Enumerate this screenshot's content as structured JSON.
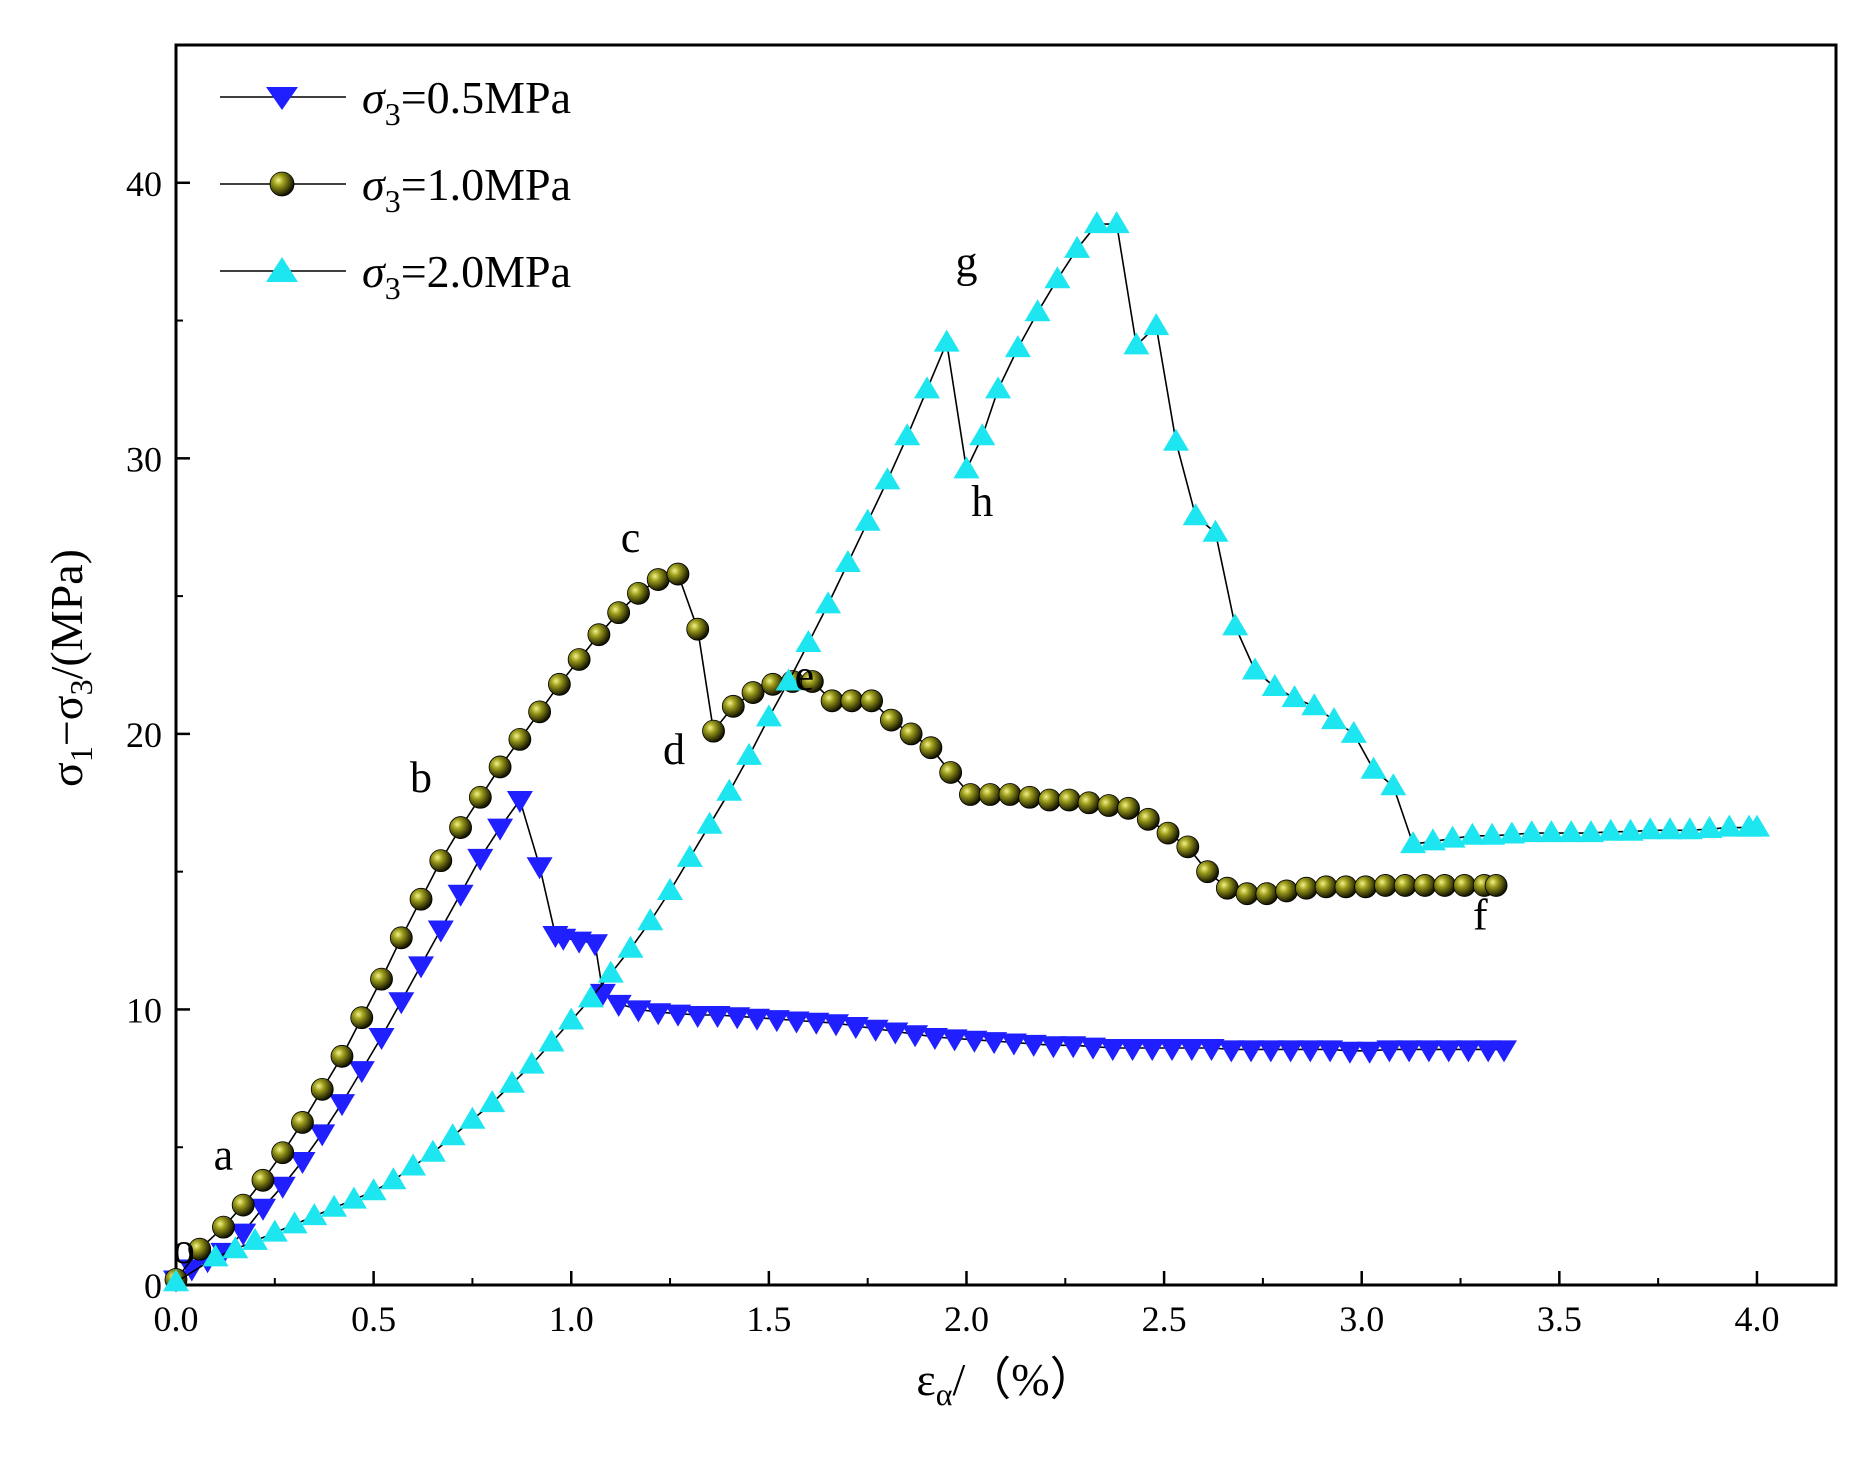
{
  "chart_data": {
    "type": "line",
    "title": "",
    "xlabel": {
      "base": "ε",
      "sub": "α",
      "suffix": "/（%）"
    },
    "ylabel": {
      "p1": "σ",
      "s1": "1",
      "mid": "−σ",
      "s2": "3",
      "suffix": "/(MPa)"
    },
    "xlim": [
      0,
      4.2
    ],
    "ylim": [
      0,
      45
    ],
    "xticks": [
      "0.0",
      "0.5",
      "1.0",
      "1.5",
      "2.0",
      "2.5",
      "3.0",
      "3.5",
      "4.0"
    ],
    "xtick_values": [
      0,
      0.5,
      1.0,
      1.5,
      2.0,
      2.5,
      3.0,
      3.5,
      4.0
    ],
    "yticks": [
      "0",
      "10",
      "20",
      "30",
      "40"
    ],
    "ytick_values": [
      0,
      10,
      20,
      30,
      40
    ],
    "legend_position": "top-left",
    "colors": {
      "s05": "#1f1fff",
      "s10": "#2b2b00",
      "s20": "#1ee6f0",
      "line": "#000000"
    },
    "series": [
      {
        "name": "σ3=0.5MPa",
        "legend": {
          "pre": "σ",
          "sub": "3",
          "post": "=0.5MPa"
        },
        "marker": "triangle-down",
        "color": "#1f1fff",
        "x": [
          0.0,
          0.04,
          0.08,
          0.12,
          0.17,
          0.22,
          0.27,
          0.32,
          0.37,
          0.42,
          0.47,
          0.52,
          0.57,
          0.62,
          0.67,
          0.72,
          0.77,
          0.82,
          0.87,
          0.92,
          0.96,
          0.98,
          1.02,
          1.06,
          1.08,
          1.12,
          1.17,
          1.22,
          1.27,
          1.32,
          1.37,
          1.42,
          1.47,
          1.52,
          1.57,
          1.62,
          1.67,
          1.72,
          1.77,
          1.82,
          1.87,
          1.92,
          1.97,
          2.02,
          2.07,
          2.12,
          2.17,
          2.22,
          2.27,
          2.32,
          2.37,
          2.42,
          2.47,
          2.52,
          2.57,
          2.62,
          2.67,
          2.72,
          2.77,
          2.82,
          2.87,
          2.92,
          2.97,
          3.02,
          3.07,
          3.12,
          3.17,
          3.22,
          3.27,
          3.32,
          3.36
        ],
        "y": [
          0.2,
          0.6,
          0.9,
          1.2,
          1.9,
          2.8,
          3.6,
          4.5,
          5.5,
          6.6,
          7.8,
          9.0,
          10.3,
          11.6,
          12.9,
          14.2,
          15.5,
          16.6,
          17.6,
          15.2,
          12.7,
          12.6,
          12.5,
          12.4,
          10.6,
          10.2,
          10.0,
          9.9,
          9.85,
          9.8,
          9.8,
          9.75,
          9.7,
          9.65,
          9.6,
          9.55,
          9.5,
          9.4,
          9.3,
          9.2,
          9.1,
          9.0,
          8.95,
          8.9,
          8.85,
          8.8,
          8.75,
          8.7,
          8.7,
          8.65,
          8.6,
          8.6,
          8.6,
          8.6,
          8.6,
          8.6,
          8.55,
          8.55,
          8.55,
          8.55,
          8.55,
          8.55,
          8.5,
          8.5,
          8.55,
          8.55,
          8.55,
          8.55,
          8.55,
          8.55,
          8.55
        ]
      },
      {
        "name": "σ3=1.0MPa",
        "legend": {
          "pre": "σ",
          "sub": "3",
          "post": "=1.0MPa"
        },
        "marker": "sphere",
        "color": "#2b2b00",
        "x": [
          0.0,
          0.06,
          0.12,
          0.17,
          0.22,
          0.27,
          0.32,
          0.37,
          0.42,
          0.47,
          0.52,
          0.57,
          0.62,
          0.67,
          0.72,
          0.77,
          0.82,
          0.87,
          0.92,
          0.97,
          1.02,
          1.07,
          1.12,
          1.17,
          1.22,
          1.27,
          1.32,
          1.36,
          1.41,
          1.46,
          1.51,
          1.56,
          1.61,
          1.66,
          1.71,
          1.76,
          1.81,
          1.86,
          1.91,
          1.96,
          2.01,
          2.06,
          2.11,
          2.16,
          2.21,
          2.26,
          2.31,
          2.36,
          2.41,
          2.46,
          2.51,
          2.56,
          2.61,
          2.66,
          2.71,
          2.76,
          2.81,
          2.86,
          2.91,
          2.96,
          3.01,
          3.06,
          3.11,
          3.16,
          3.21,
          3.26,
          3.31,
          3.34
        ],
        "y": [
          0.2,
          1.3,
          2.1,
          2.9,
          3.8,
          4.8,
          5.9,
          7.1,
          8.3,
          9.7,
          11.1,
          12.6,
          14.0,
          15.4,
          16.6,
          17.7,
          18.8,
          19.8,
          20.8,
          21.8,
          22.7,
          23.6,
          24.4,
          25.1,
          25.6,
          25.8,
          23.8,
          20.1,
          21.0,
          21.5,
          21.8,
          21.9,
          21.9,
          21.2,
          21.2,
          21.2,
          20.5,
          20.0,
          19.5,
          18.6,
          17.8,
          17.8,
          17.8,
          17.7,
          17.6,
          17.6,
          17.5,
          17.4,
          17.3,
          16.9,
          16.4,
          15.9,
          15.0,
          14.4,
          14.2,
          14.2,
          14.3,
          14.4,
          14.45,
          14.45,
          14.45,
          14.5,
          14.5,
          14.5,
          14.5,
          14.5,
          14.5,
          14.5
        ]
      },
      {
        "name": "σ3=2.0MPa",
        "legend": {
          "pre": "σ",
          "sub": "3",
          "post": "=2.0MPa"
        },
        "marker": "triangle-up",
        "color": "#1ee6f0",
        "x": [
          0.0,
          0.1,
          0.15,
          0.2,
          0.25,
          0.3,
          0.35,
          0.4,
          0.45,
          0.5,
          0.55,
          0.6,
          0.65,
          0.7,
          0.75,
          0.8,
          0.85,
          0.9,
          0.95,
          1.0,
          1.05,
          1.1,
          1.15,
          1.2,
          1.25,
          1.3,
          1.35,
          1.4,
          1.45,
          1.5,
          1.55,
          1.6,
          1.65,
          1.7,
          1.75,
          1.8,
          1.85,
          1.9,
          1.95,
          2.0,
          2.04,
          2.08,
          2.13,
          2.18,
          2.23,
          2.28,
          2.33,
          2.38,
          2.43,
          2.48,
          2.53,
          2.58,
          2.63,
          2.68,
          2.73,
          2.78,
          2.83,
          2.88,
          2.93,
          2.98,
          3.03,
          3.08,
          3.13,
          3.18,
          3.23,
          3.28,
          3.33,
          3.38,
          3.43,
          3.48,
          3.53,
          3.58,
          3.63,
          3.68,
          3.73,
          3.78,
          3.83,
          3.88,
          3.93,
          3.98,
          4.0
        ],
        "y": [
          0.1,
          1.0,
          1.3,
          1.6,
          1.9,
          2.2,
          2.5,
          2.8,
          3.1,
          3.4,
          3.8,
          4.3,
          4.8,
          5.4,
          6.0,
          6.6,
          7.3,
          8.0,
          8.8,
          9.6,
          10.4,
          11.3,
          12.2,
          13.2,
          14.3,
          15.5,
          16.7,
          17.9,
          19.2,
          20.6,
          21.9,
          23.3,
          24.7,
          26.2,
          27.7,
          29.2,
          30.8,
          32.5,
          34.2,
          29.6,
          30.8,
          32.5,
          34.0,
          35.3,
          36.5,
          37.6,
          38.5,
          38.5,
          34.1,
          34.8,
          30.6,
          27.9,
          27.3,
          23.9,
          22.3,
          21.7,
          21.3,
          21.0,
          20.5,
          20.0,
          18.7,
          18.1,
          16.0,
          16.1,
          16.2,
          16.3,
          16.3,
          16.35,
          16.4,
          16.4,
          16.4,
          16.4,
          16.45,
          16.45,
          16.5,
          16.5,
          16.5,
          16.55,
          16.6,
          16.6,
          16.6
        ]
      }
    ],
    "annotations": [
      {
        "text": "o",
        "x": 0.02,
        "y": 0.8
      },
      {
        "text": "a",
        "x": 0.12,
        "y": 4.2
      },
      {
        "text": "b",
        "x": 0.62,
        "y": 17.9
      },
      {
        "text": "c",
        "x": 1.15,
        "y": 26.6
      },
      {
        "text": "d",
        "x": 1.26,
        "y": 18.9
      },
      {
        "text": "e",
        "x": 1.59,
        "y": 21.6
      },
      {
        "text": "g",
        "x": 2.0,
        "y": 36.6
      },
      {
        "text": "h",
        "x": 2.04,
        "y": 27.9
      },
      {
        "text": "f",
        "x": 3.3,
        "y": 12.9
      }
    ]
  }
}
